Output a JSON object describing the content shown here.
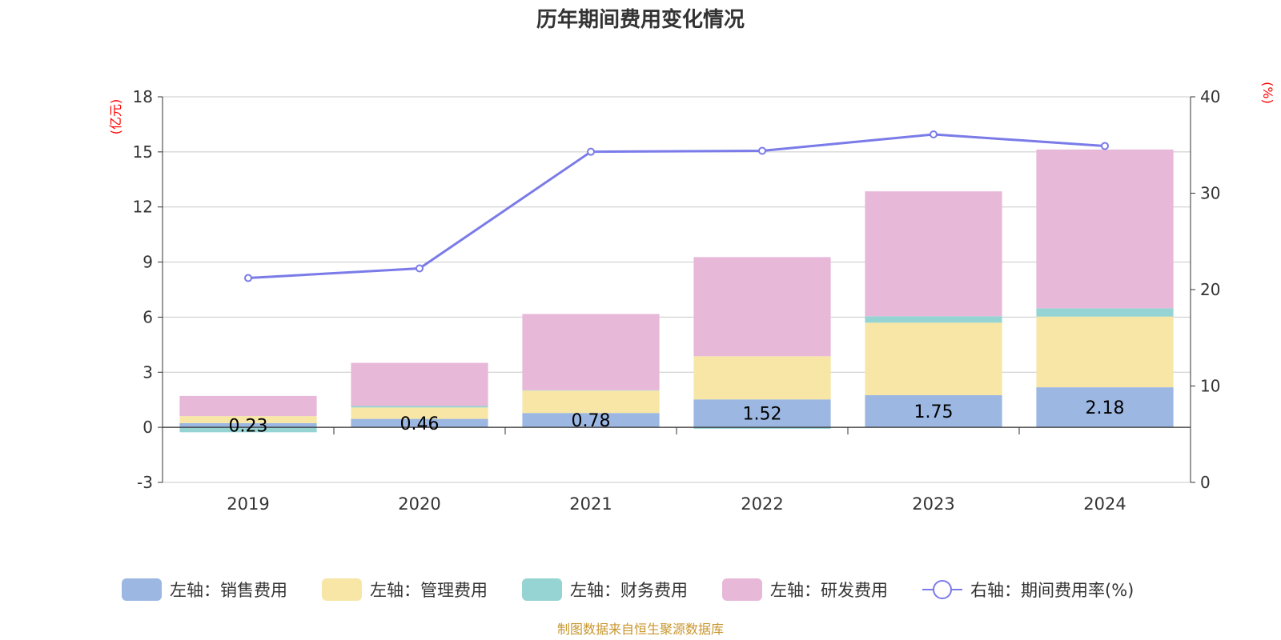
{
  "chart_data": {
    "type": "bar",
    "title": "历年期间费用变化情况",
    "categories": [
      "2019",
      "2020",
      "2021",
      "2022",
      "2023",
      "2024"
    ],
    "y_left": {
      "unit": "(亿元)",
      "ylim": [
        -3,
        18
      ],
      "ticks": [
        -3,
        0,
        3,
        6,
        9,
        12,
        15,
        18
      ]
    },
    "y_right": {
      "unit": "(%)",
      "ylim": [
        0,
        40
      ],
      "ticks": [
        0,
        10,
        20,
        30,
        40
      ]
    },
    "series": [
      {
        "name": "左轴：销售费用",
        "axis": "left",
        "type": "bar",
        "color": "#9bb7e2",
        "values": [
          0.23,
          0.46,
          0.78,
          1.52,
          1.75,
          2.18
        ],
        "labels": [
          "0.23",
          "0.46",
          "0.78",
          "1.52",
          "1.75",
          "2.18"
        ]
      },
      {
        "name": "左轴：管理费用",
        "axis": "left",
        "type": "bar",
        "color": "#f7e6a6",
        "values": [
          0.38,
          0.62,
          1.22,
          2.35,
          3.95,
          3.85
        ]
      },
      {
        "name": "左轴：财务费用",
        "axis": "left",
        "type": "bar",
        "color": "#96d4d4",
        "values": [
          -0.27,
          0.08,
          0.02,
          -0.08,
          0.35,
          0.45
        ]
      },
      {
        "name": "左轴：研发费用",
        "axis": "left",
        "type": "bar",
        "color": "#e7b8d8",
        "values": [
          1.1,
          2.35,
          4.15,
          5.4,
          6.8,
          8.65
        ]
      },
      {
        "name": "右轴：期间费用率(%)",
        "axis": "right",
        "type": "line",
        "color": "#7a7be8",
        "values": [
          21.2,
          22.2,
          34.3,
          34.4,
          36.1,
          34.9
        ]
      }
    ],
    "grid": true,
    "legend_position": "bottom"
  },
  "footer": {
    "source": "制图数据来自恒生聚源数据库"
  }
}
